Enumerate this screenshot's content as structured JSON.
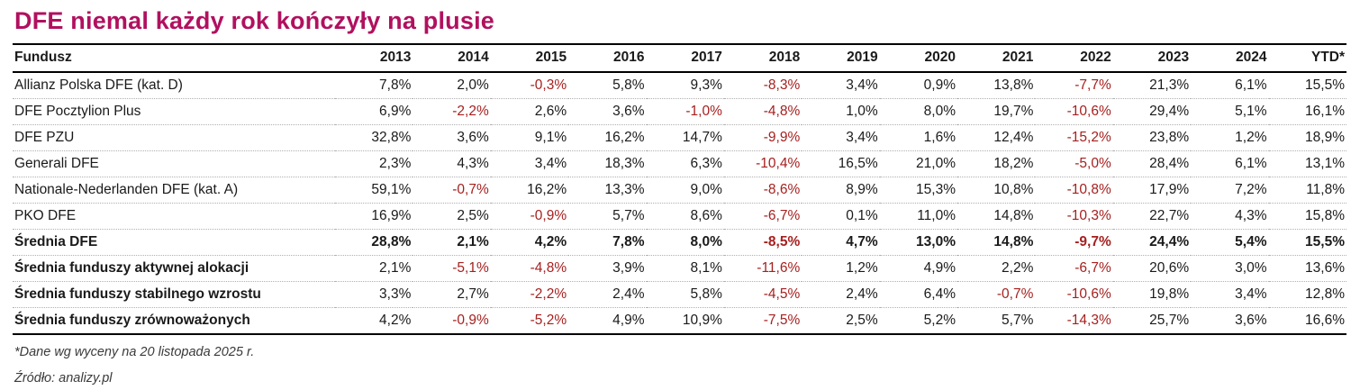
{
  "title": "DFE niemal każdy rok kończyły na plusie",
  "colors": {
    "accent_title": "#B1105F",
    "negative_value": "#A6201F",
    "text": "#1a1a1a",
    "row_divider": "#b0b0b0"
  },
  "footnotes": {
    "valuation_note": "*Dane wg wyceny na 20 listopada 2025 r.",
    "source_note": "Źródło: analizy.pl"
  },
  "chart_data": {
    "type": "table",
    "title": "DFE niemal każdy rok kończyły na plusie",
    "columns": [
      "Fundusz",
      "2013",
      "2014",
      "2015",
      "2016",
      "2017",
      "2018",
      "2019",
      "2020",
      "2021",
      "2022",
      "2023",
      "2024",
      "YTD*"
    ],
    "rows": [
      {
        "fundusz": "Allianz Polska DFE (kat. D)",
        "emphasis": "none",
        "values": [
          "7,8%",
          "2,0%",
          "-0,3%",
          "5,8%",
          "9,3%",
          "-8,3%",
          "3,4%",
          "0,9%",
          "13,8%",
          "-7,7%",
          "21,3%",
          "6,1%",
          "15,5%"
        ]
      },
      {
        "fundusz": "DFE Pocztylion Plus",
        "emphasis": "none",
        "values": [
          "6,9%",
          "-2,2%",
          "2,6%",
          "3,6%",
          "-1,0%",
          "-4,8%",
          "1,0%",
          "8,0%",
          "19,7%",
          "-10,6%",
          "29,4%",
          "5,1%",
          "16,1%"
        ]
      },
      {
        "fundusz": "DFE PZU",
        "emphasis": "none",
        "values": [
          "32,8%",
          "3,6%",
          "9,1%",
          "16,2%",
          "14,7%",
          "-9,9%",
          "3,4%",
          "1,6%",
          "12,4%",
          "-15,2%",
          "23,8%",
          "1,2%",
          "18,9%"
        ]
      },
      {
        "fundusz": "Generali DFE",
        "emphasis": "none",
        "values": [
          "2,3%",
          "4,3%",
          "3,4%",
          "18,3%",
          "6,3%",
          "-10,4%",
          "16,5%",
          "21,0%",
          "18,2%",
          "-5,0%",
          "28,4%",
          "6,1%",
          "13,1%"
        ]
      },
      {
        "fundusz": "Nationale-Nederlanden DFE (kat. A)",
        "emphasis": "none",
        "values": [
          "59,1%",
          "-0,7%",
          "16,2%",
          "13,3%",
          "9,0%",
          "-8,6%",
          "8,9%",
          "15,3%",
          "10,8%",
          "-10,8%",
          "17,9%",
          "7,2%",
          "11,8%"
        ]
      },
      {
        "fundusz": "PKO DFE",
        "emphasis": "none",
        "values": [
          "16,9%",
          "2,5%",
          "-0,9%",
          "5,7%",
          "8,6%",
          "-6,7%",
          "0,1%",
          "11,0%",
          "14,8%",
          "-10,3%",
          "22,7%",
          "4,3%",
          "15,8%"
        ]
      },
      {
        "fundusz": "Średnia DFE",
        "emphasis": "all",
        "values": [
          "28,8%",
          "2,1%",
          "4,2%",
          "7,8%",
          "8,0%",
          "-8,5%",
          "4,7%",
          "13,0%",
          "14,8%",
          "-9,7%",
          "24,4%",
          "5,4%",
          "15,5%"
        ]
      },
      {
        "fundusz": "Średnia funduszy aktywnej alokacji",
        "emphasis": "label",
        "values": [
          "2,1%",
          "-5,1%",
          "-4,8%",
          "3,9%",
          "8,1%",
          "-11,6%",
          "1,2%",
          "4,9%",
          "2,2%",
          "-6,7%",
          "20,6%",
          "3,0%",
          "13,6%"
        ]
      },
      {
        "fundusz": "Średnia funduszy stabilnego wzrostu",
        "emphasis": "label",
        "values": [
          "3,3%",
          "2,7%",
          "-2,2%",
          "2,4%",
          "5,8%",
          "-4,5%",
          "2,4%",
          "6,4%",
          "-0,7%",
          "-10,6%",
          "19,8%",
          "3,4%",
          "12,8%"
        ]
      },
      {
        "fundusz": "Średnia funduszy zrównoważonych",
        "emphasis": "label",
        "values": [
          "4,2%",
          "-0,9%",
          "-5,2%",
          "4,9%",
          "10,9%",
          "-7,5%",
          "2,5%",
          "5,2%",
          "5,7%",
          "-14,3%",
          "25,7%",
          "3,6%",
          "16,6%"
        ]
      }
    ]
  }
}
